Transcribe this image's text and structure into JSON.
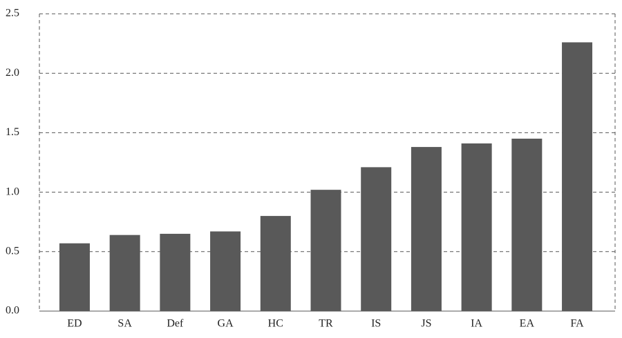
{
  "chart_data": {
    "type": "bar",
    "categories": [
      "ED",
      "SA",
      "Def",
      "GA",
      "HC",
      "TR",
      "IS",
      "JS",
      "IA",
      "EA",
      "FA"
    ],
    "values": [
      0.57,
      0.64,
      0.65,
      0.67,
      0.8,
      1.02,
      1.21,
      1.38,
      1.41,
      1.45,
      2.26
    ],
    "color": "#595959",
    "ylim": [
      0,
      2.5
    ],
    "yticks": [
      {
        "value": 0,
        "label": "0.0"
      },
      0.5,
      {
        "value": 1,
        "label": "1.0"
      },
      1.5,
      {
        "value": 2,
        "label": "2.0"
      },
      2.5
    ],
    "grid": true
  }
}
